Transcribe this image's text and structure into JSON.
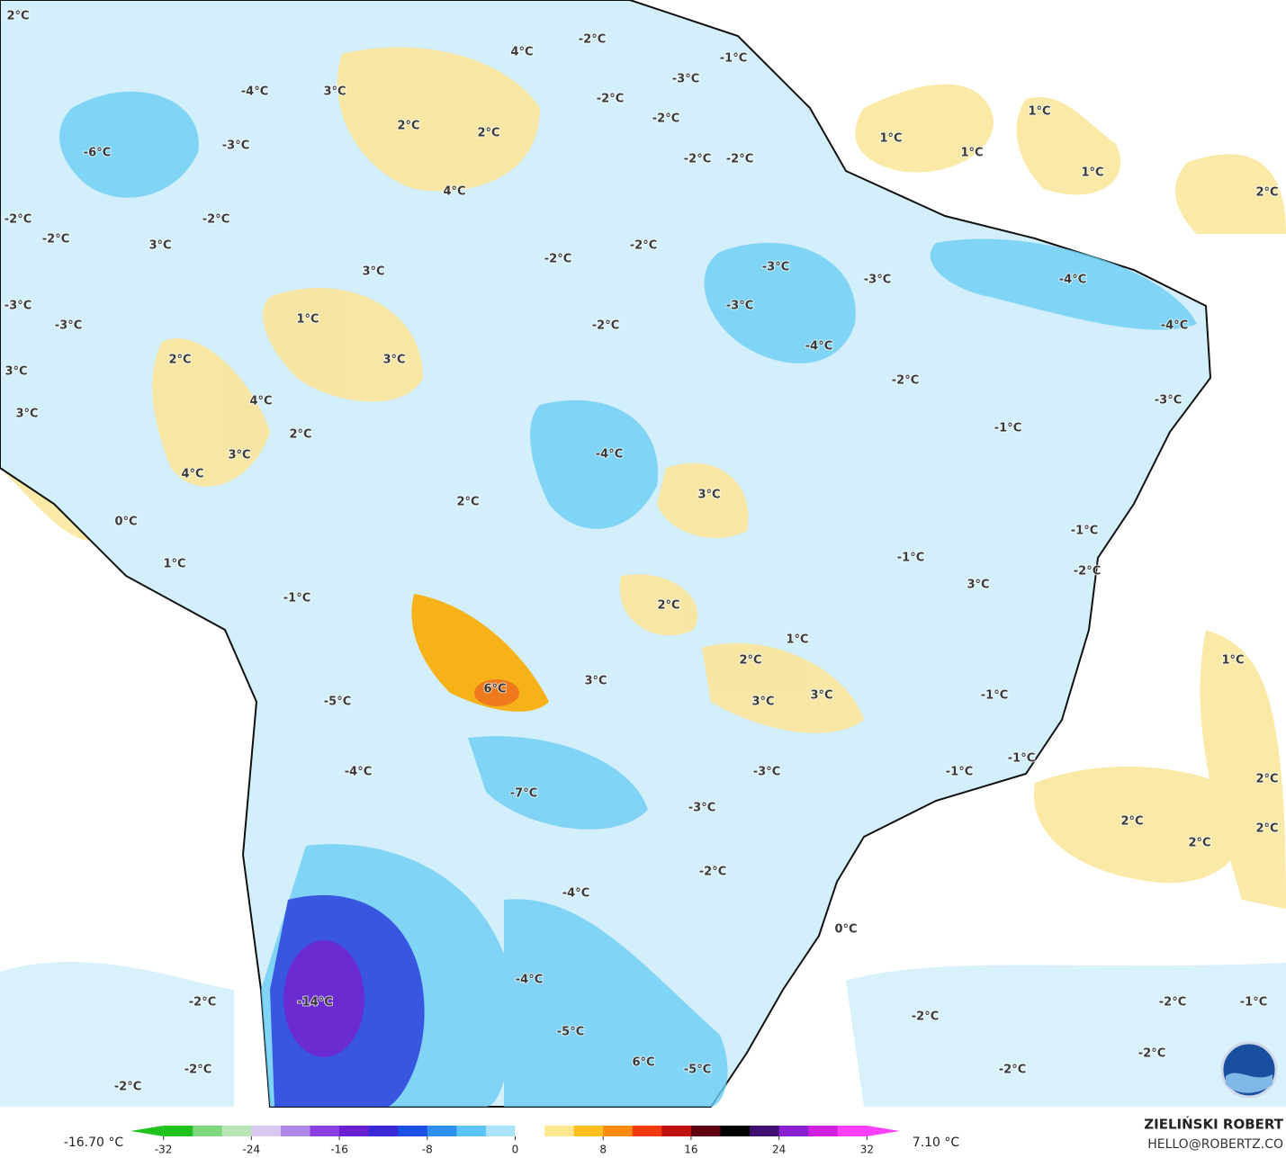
{
  "map_labels": [
    "2°C",
    "-2°C",
    "4°C",
    "-1°C",
    "-3°C",
    "-4°C",
    "3°C",
    "-2°C",
    "-2°C",
    "2°C",
    "2°C",
    "1°C",
    "1°C",
    "-6°C",
    "-3°C",
    "1°C",
    "-2°C",
    "-2°C",
    "1°C",
    "4°C",
    "2°C",
    "-2°C",
    "-2°C",
    "-2°C",
    "3°C",
    "-2°C",
    "-2°C",
    "-3°C",
    "3°C",
    "-3°C",
    "-4°C",
    "-3°C",
    "-3°C",
    "1°C",
    "-3°C",
    "-2°C",
    "-4°C",
    "-4°C",
    "3°C",
    "2°C",
    "3°C",
    "-2°C",
    "4°C",
    "-3°C",
    "3°C",
    "-1°C",
    "2°C",
    "-4°C",
    "3°C",
    "4°C",
    "3°C",
    "2°C",
    "0°C",
    "-1°C",
    "-1°C",
    "1°C",
    "-2°C",
    "3°C",
    "-1°C",
    "2°C",
    "1°C",
    "1°C",
    "2°C",
    "3°C",
    "6°C",
    "-1°C",
    "3°C",
    "3°C",
    "-5°C",
    "-1°C",
    "-3°C",
    "-4°C",
    "-1°C",
    "2°C",
    "-7°C",
    "-3°C",
    "2°C",
    "2°C",
    "2°C",
    "-2°C",
    "-4°C",
    "0°C",
    "-4°C",
    "-2°C",
    "-1°C",
    "-2°C",
    "-14°C",
    "-2°C",
    "-5°C",
    "-2°C",
    "6°C",
    "-2°C",
    "-5°C",
    "-2°C",
    "-2°C"
  ],
  "colorbar": {
    "min_label": "-16.70 °C",
    "max_label": "7.10 °C",
    "lim": [
      -35,
      35
    ],
    "ticks": [
      -32,
      -24,
      -16,
      -8,
      0,
      8,
      16,
      24,
      32
    ]
  },
  "credits": {
    "author": "ZIELIŃSKI ROBERT",
    "email": "HELLO@ROBERTZ.CO"
  }
}
